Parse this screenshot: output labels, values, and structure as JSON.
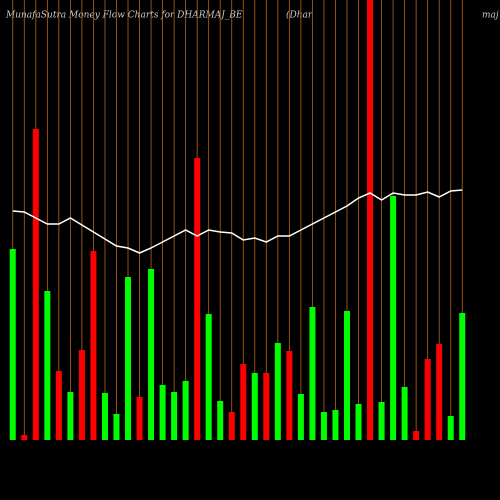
{
  "chart_data": {
    "type": "bar",
    "title": "MunafaSutra  Money Flow  Charts for DHARMAJ_BE",
    "subtitle": "(Dhar",
    "subtitle2": "maj",
    "values": [
      191,
      5,
      311,
      149,
      69,
      48,
      90,
      189,
      47,
      26,
      163,
      43,
      171,
      55,
      48,
      59,
      282,
      126,
      39,
      28,
      76,
      67,
      67,
      97,
      89,
      46,
      133,
      28,
      30,
      129,
      36,
      440,
      38,
      244,
      53,
      9,
      81,
      96,
      24,
      127
    ],
    "colors": [
      "#00ff00",
      "#ff0000",
      "#ff0000",
      "#00ff00",
      "#ff0000",
      "#00ff00",
      "#ff0000",
      "#ff0000",
      "#00ff00",
      "#00ff00",
      "#00ff00",
      "#ff0000",
      "#00ff00",
      "#00ff00",
      "#00ff00",
      "#00ff00",
      "#ff0000",
      "#00ff00",
      "#00ff00",
      "#ff0000",
      "#ff0000",
      "#00ff00",
      "#ff0000",
      "#00ff00",
      "#ff0000",
      "#00ff00",
      "#00ff00",
      "#00ff00",
      "#00ff00",
      "#00ff00",
      "#00ff00",
      "#ff0000",
      "#00ff00",
      "#00ff00",
      "#00ff00",
      "#ff0000",
      "#ff0000",
      "#ff0000",
      "#00ff00",
      "#00ff00"
    ],
    "line": {
      "color": "#ffffff",
      "values": [
        229,
        228,
        222,
        216,
        216,
        222,
        215,
        208,
        201,
        194,
        192,
        187,
        192,
        198,
        204,
        210,
        204,
        210,
        208,
        207,
        200,
        202,
        198,
        204,
        204,
        210,
        216,
        222,
        228,
        234,
        242,
        247,
        240,
        247,
        245,
        245,
        248,
        243,
        249,
        250
      ]
    },
    "ylim": [
      0,
      440
    ],
    "grid_color": "#b5651d"
  }
}
